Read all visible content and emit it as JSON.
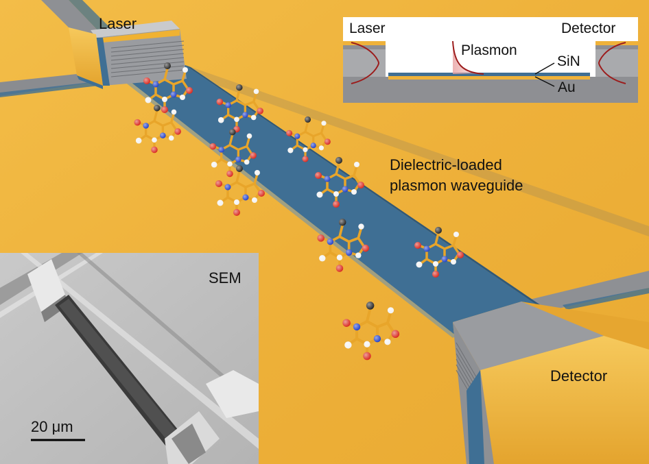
{
  "labels": {
    "laser": "Laser",
    "waveguide_line1": "Dielectric-loaded",
    "waveguide_line2": "plasmon waveguide",
    "detector": "Detector",
    "sem": "SEM",
    "scale_bar": "20 μm"
  },
  "inset": {
    "laser": "Laser",
    "detector": "Detector",
    "plasmon": "Plasmon",
    "sin": "SiN",
    "au": "Au"
  },
  "colors": {
    "gold": "#efb23a",
    "waveguide": "#3f6f94",
    "grey_block": "#8e8e92",
    "atom_black": "#222222",
    "atom_red": "#d8261c",
    "atom_blue": "#1f3ec8",
    "atom_white": "#f2f2f2",
    "bond": "#e8a52a",
    "mode_curve": "#9c1c1c"
  },
  "molecules": [
    "caffeine"
  ]
}
